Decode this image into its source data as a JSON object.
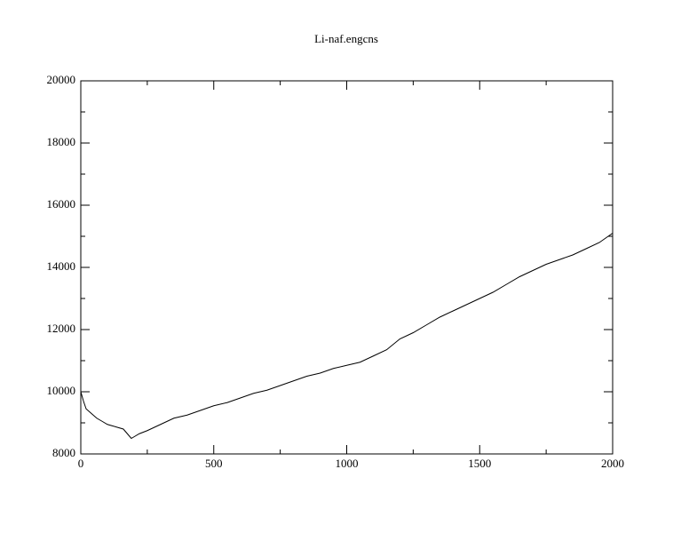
{
  "chart_data": {
    "type": "line",
    "title": "Li-naf.engcns",
    "x": [
      0,
      10,
      20,
      40,
      60,
      80,
      100,
      120,
      140,
      160,
      180,
      190,
      200,
      220,
      250,
      300,
      350,
      400,
      450,
      500,
      550,
      600,
      650,
      700,
      750,
      800,
      850,
      900,
      950,
      1000,
      1050,
      1100,
      1150,
      1200,
      1250,
      1300,
      1350,
      1400,
      1450,
      1500,
      1550,
      1600,
      1650,
      1700,
      1750,
      1800,
      1850,
      1900,
      1950,
      2000
    ],
    "series": [
      {
        "color": "#000000",
        "values": [
          10000,
          9700,
          9450,
          9300,
          9150,
          9050,
          8950,
          8900,
          8850,
          8800,
          8600,
          8500,
          8550,
          8650,
          8750,
          8950,
          9150,
          9250,
          9400,
          9550,
          9650,
          9800,
          9950,
          10050,
          10200,
          10350,
          10500,
          10600,
          10750,
          10850,
          10950,
          11150,
          11350,
          11700,
          11900,
          12150,
          12400,
          12600,
          12800,
          13000,
          13200,
          13450,
          13700,
          13900,
          14100,
          14250,
          14400,
          14600,
          14800,
          15100
        ]
      }
    ],
    "xlim": [
      0,
      2000
    ],
    "ylim": [
      8000,
      20000
    ],
    "xticks": [
      0,
      500,
      1000,
      1500,
      2000
    ],
    "yticks": [
      8000,
      10000,
      12000,
      14000,
      16000,
      18000,
      20000
    ],
    "xminorticks": [
      250,
      750,
      1250,
      1750
    ],
    "yminorticks": [
      9000,
      11000,
      13000,
      15000,
      17000,
      19000
    ]
  }
}
